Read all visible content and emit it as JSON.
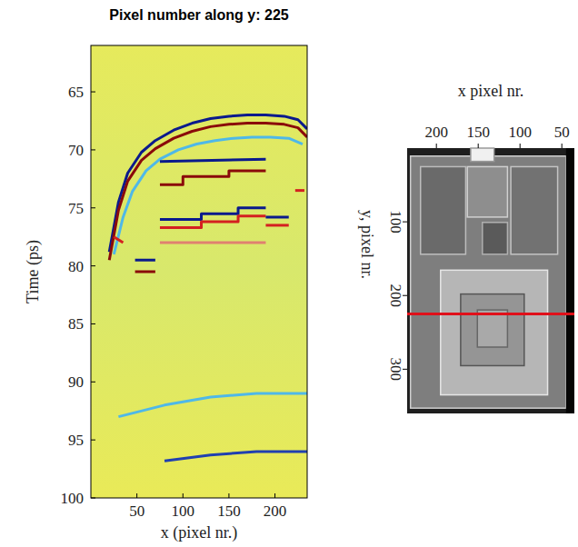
{
  "chart_data": [
    {
      "type": "line",
      "title": "Pixel number along y:   225",
      "x_label": "x (pixel nr.)",
      "y_label": "Time (ps)",
      "xlim": [
        0,
        235
      ],
      "ylim": [
        100,
        61
      ],
      "xticks": [
        50,
        100,
        150,
        200
      ],
      "yticks": [
        65,
        70,
        75,
        80,
        85,
        90,
        95,
        100
      ],
      "marker": "none",
      "series": [
        {
          "color": "#0a1a8c",
          "x": [
            20,
            30,
            40,
            55,
            70,
            90,
            110,
            130,
            150,
            170,
            190,
            210,
            225,
            235
          ],
          "values": [
            78.8,
            74.5,
            72,
            70.2,
            69.2,
            68.3,
            67.7,
            67.3,
            67.1,
            67,
            67,
            67.1,
            67.4,
            68.2
          ]
        },
        {
          "color": "#8a0a0a",
          "x": [
            20,
            30,
            40,
            55,
            70,
            90,
            110,
            130,
            150,
            170,
            190,
            210,
            225,
            235
          ],
          "values": [
            79.5,
            75.2,
            72.7,
            70.9,
            69.9,
            69,
            68.4,
            68,
            67.8,
            67.7,
            67.7,
            67.8,
            68.1,
            68.9
          ]
        },
        {
          "color": "#4fb8e8",
          "x": [
            25,
            35,
            45,
            60,
            75,
            95,
            115,
            135,
            155,
            175,
            195,
            215,
            230
          ],
          "values": [
            79,
            75.8,
            73.6,
            71.8,
            70.8,
            70,
            69.5,
            69.2,
            69,
            68.9,
            68.9,
            69,
            69.5
          ]
        },
        {
          "color": "#0a1a8c",
          "x": [
            75,
            190
          ],
          "values": [
            71,
            70.8
          ]
        },
        {
          "color": "#8a0a0a",
          "x": [
            75,
            100,
            100,
            150,
            150,
            190
          ],
          "values": [
            73,
            73,
            72.3,
            72.3,
            71.8,
            71.8
          ]
        },
        {
          "color": "#0a1a8c",
          "x": [
            75,
            120,
            120,
            160,
            160,
            190
          ],
          "values": [
            76,
            76,
            75.5,
            75.5,
            75,
            75
          ]
        },
        {
          "color": "#d42020",
          "x": [
            75,
            120,
            120,
            160,
            160,
            190
          ],
          "values": [
            76.7,
            76.7,
            76.2,
            76.2,
            75.7,
            75.7
          ]
        },
        {
          "color": "#e08070",
          "x": [
            75,
            190
          ],
          "values": [
            78,
            78
          ]
        },
        {
          "color": "#0a1a8c",
          "x": [
            48,
            70
          ],
          "values": [
            79.5,
            79.5
          ]
        },
        {
          "color": "#8a0a0a",
          "x": [
            48,
            70
          ],
          "values": [
            80.5,
            80.5
          ]
        },
        {
          "color": "#d42020",
          "x": [
            25,
            35
          ],
          "values": [
            77.5,
            78
          ]
        },
        {
          "color": "#0a1a8c",
          "x": [
            190,
            215
          ],
          "values": [
            75.8,
            75.8
          ]
        },
        {
          "color": "#d42020",
          "x": [
            190,
            215
          ],
          "values": [
            76.5,
            76.5
          ]
        },
        {
          "color": "#d42020",
          "x": [
            222,
            232
          ],
          "values": [
            73.5,
            73.5
          ]
        },
        {
          "color": "#4fb8e8",
          "x": [
            30,
            80,
            130,
            180,
            235
          ],
          "values": [
            93,
            92,
            91.3,
            91,
            91
          ]
        },
        {
          "color": "#2040b0",
          "x": [
            80,
            130,
            180,
            235
          ],
          "values": [
            96.8,
            96.3,
            96,
            96
          ]
        }
      ]
    },
    {
      "type": "image",
      "x_label": "x pixel nr.",
      "y_label": "y, pixel nr.",
      "xlim": [
        235,
        35
      ],
      "ylim": [
        360,
        0
      ],
      "xticks": [
        200,
        150,
        100,
        50
      ],
      "yticks": [
        100,
        200,
        300
      ],
      "highlight_y": 225,
      "color": "#e0101a"
    }
  ]
}
